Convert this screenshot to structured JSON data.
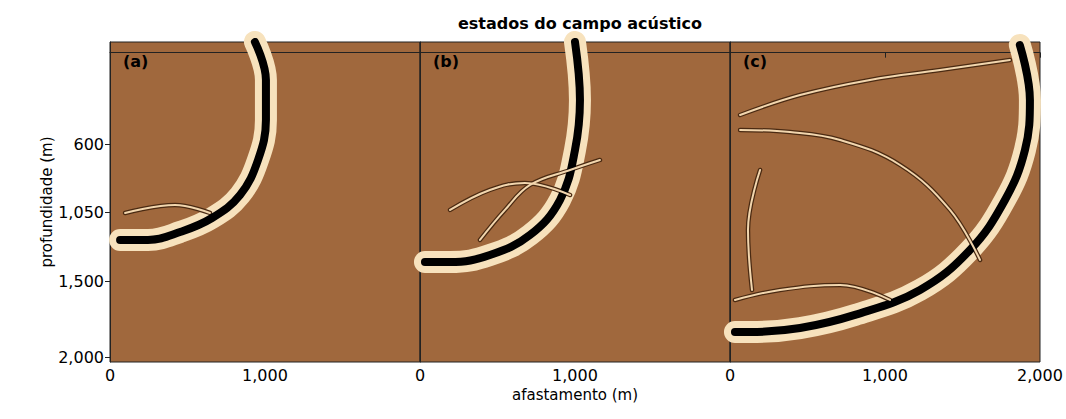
{
  "chart_data": {
    "type": "line",
    "title": "estados do campo acústico",
    "xlabel": "afastamento (m)",
    "ylabel": "profundidade (m)",
    "ylim": [
      -70,
      2030
    ],
    "yticks": [
      600,
      1050,
      1500,
      2000
    ],
    "grid": false,
    "panels": [
      {
        "label": "(a)",
        "xlim": [
          0,
          2000
        ],
        "xticks": [
          0,
          1000
        ],
        "series": [
          {
            "color": "#000000",
            "line_style": "thick",
            "x": [
              935,
              1006,
              1006,
              955,
              839,
              658,
              452,
              245,
              65
            ],
            "values": [
              -70,
              179,
              442,
              704,
              934,
              1085,
              1177,
              1229,
              1229
            ]
          },
          {
            "color": "#f2d6ae",
            "line_style": "thin",
            "x": [
              97,
              419,
              645
            ],
            "values": [
              1052,
              1000,
              1052
            ]
          }
        ]
      },
      {
        "label": "(b)",
        "xlim": [
          0,
          2000
        ],
        "xticks": [
          0,
          1000
        ],
        "series": [
          {
            "color": "#000000",
            "line_style": "thick",
            "x": [
              1000,
              1032,
              1000,
              903,
              710,
              451,
              194,
              32
            ],
            "values": [
              -70,
              311,
              639,
              967,
              1196,
              1328,
              1374,
              1374
            ]
          },
          {
            "color": "#f2d6ae",
            "line_style": "thin",
            "x": [
              194,
              451,
              677,
              968
            ],
            "values": [
              1032,
              901,
              855,
              934
            ]
          },
          {
            "color": "#f2d6ae",
            "line_style": "thin",
            "x": [
              387,
              548,
              710,
              968,
              1161
            ],
            "values": [
              1229,
              1032,
              868,
              770,
              704
            ]
          }
        ]
      },
      {
        "label": "(c)",
        "xlim": [
          0,
          2000
        ],
        "xticks": [
          0,
          1000,
          2000
        ],
        "series": [
          {
            "color": "#000000",
            "line_style": "thick",
            "x": [
              1870,
              1935,
              1903,
              1774,
              1548,
              1226,
              806,
              452,
              129,
              32
            ],
            "values": [
              -50,
              311,
              639,
              967,
              1295,
              1557,
              1721,
              1807,
              1833,
              1833
            ]
          },
          {
            "color": "#f2d6ae",
            "line_style": "thin",
            "x": [
              65,
              452,
              903,
              1355,
              1806
            ],
            "values": [
              409,
              278,
              179,
              114,
              48
            ]
          },
          {
            "color": "#f2d6ae",
            "line_style": "thin",
            "x": [
              65,
              387,
              710,
              1097,
              1419,
              1613
            ],
            "values": [
              507,
              521,
              573,
              737,
              1032,
              1360
            ]
          },
          {
            "color": "#f2d6ae",
            "line_style": "thin",
            "x": [
              32,
              323,
              710,
              1032
            ],
            "values": [
              1623,
              1557,
              1524,
              1623
            ]
          },
          {
            "color": "#f2d6ae",
            "line_style": "thin",
            "x": [
              194,
              116,
              142
            ],
            "values": [
              770,
              1164,
              1557
            ]
          }
        ]
      }
    ]
  }
}
